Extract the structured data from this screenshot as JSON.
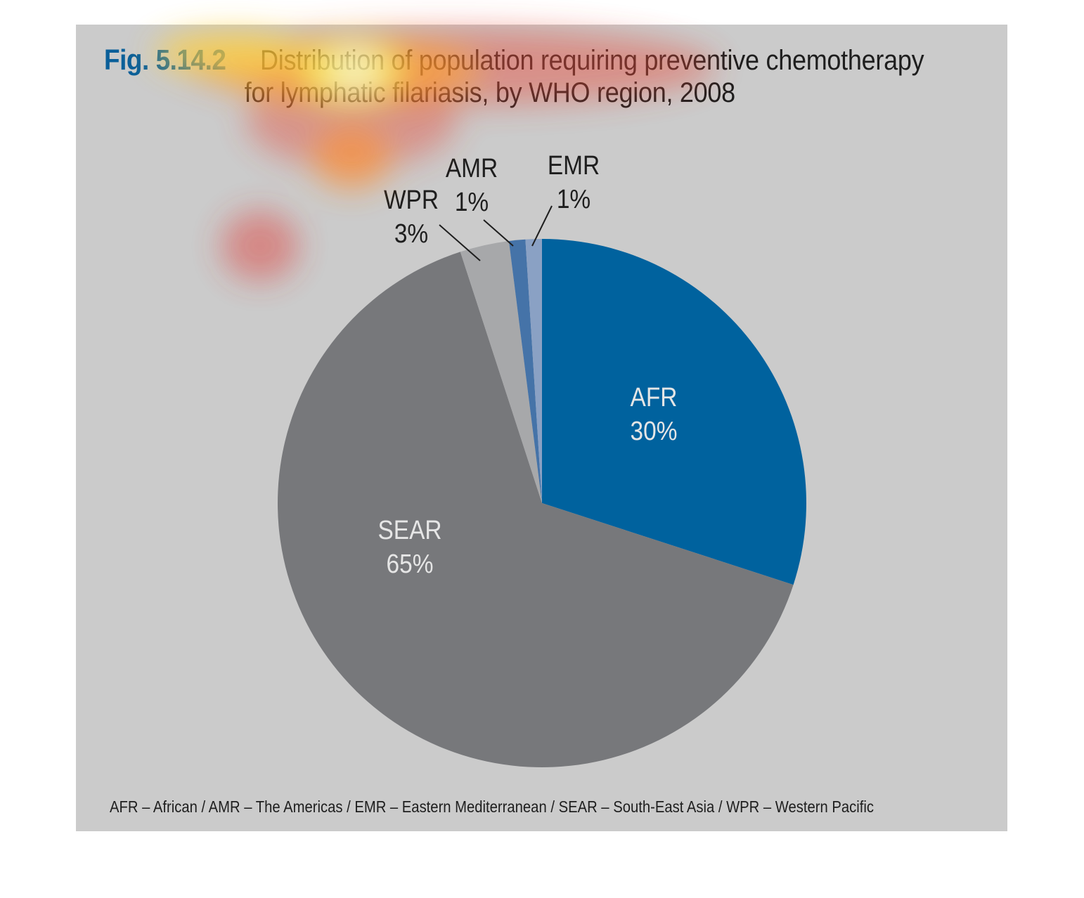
{
  "figure": {
    "label": "Fig. 5.14.2",
    "title_line1": "Distribution of population requiring preventive chemotherapy",
    "title_line2": "for lymphatic filariasis, by WHO region, 2008",
    "footnote": "AFR – African / AMR – The Americas / EMR – Eastern Mediterranean / SEAR – South-East Asia / WPR – Western Pacific"
  },
  "colors": {
    "panel": "#cbcbcb",
    "fig_label": "#0a5f99"
  },
  "chart_data": {
    "type": "pie",
    "title": "Distribution of population requiring preventive chemotherapy for lymphatic filariasis, by WHO region, 2008",
    "start": "12 o'clock, clockwise",
    "slices": [
      {
        "category": "AFR",
        "value": 30,
        "label": "30%",
        "color": "#00629e"
      },
      {
        "category": "SEAR",
        "value": 65,
        "label": "65%",
        "color": "#77787b"
      },
      {
        "category": "WPR",
        "value": 3,
        "label": "3%",
        "color": "#a7a8aa"
      },
      {
        "category": "AMR",
        "value": 1,
        "label": "1%",
        "color": "#4573a8"
      },
      {
        "category": "EMR",
        "value": 1,
        "label": "1%",
        "color": "#8aa1c4"
      }
    ]
  }
}
